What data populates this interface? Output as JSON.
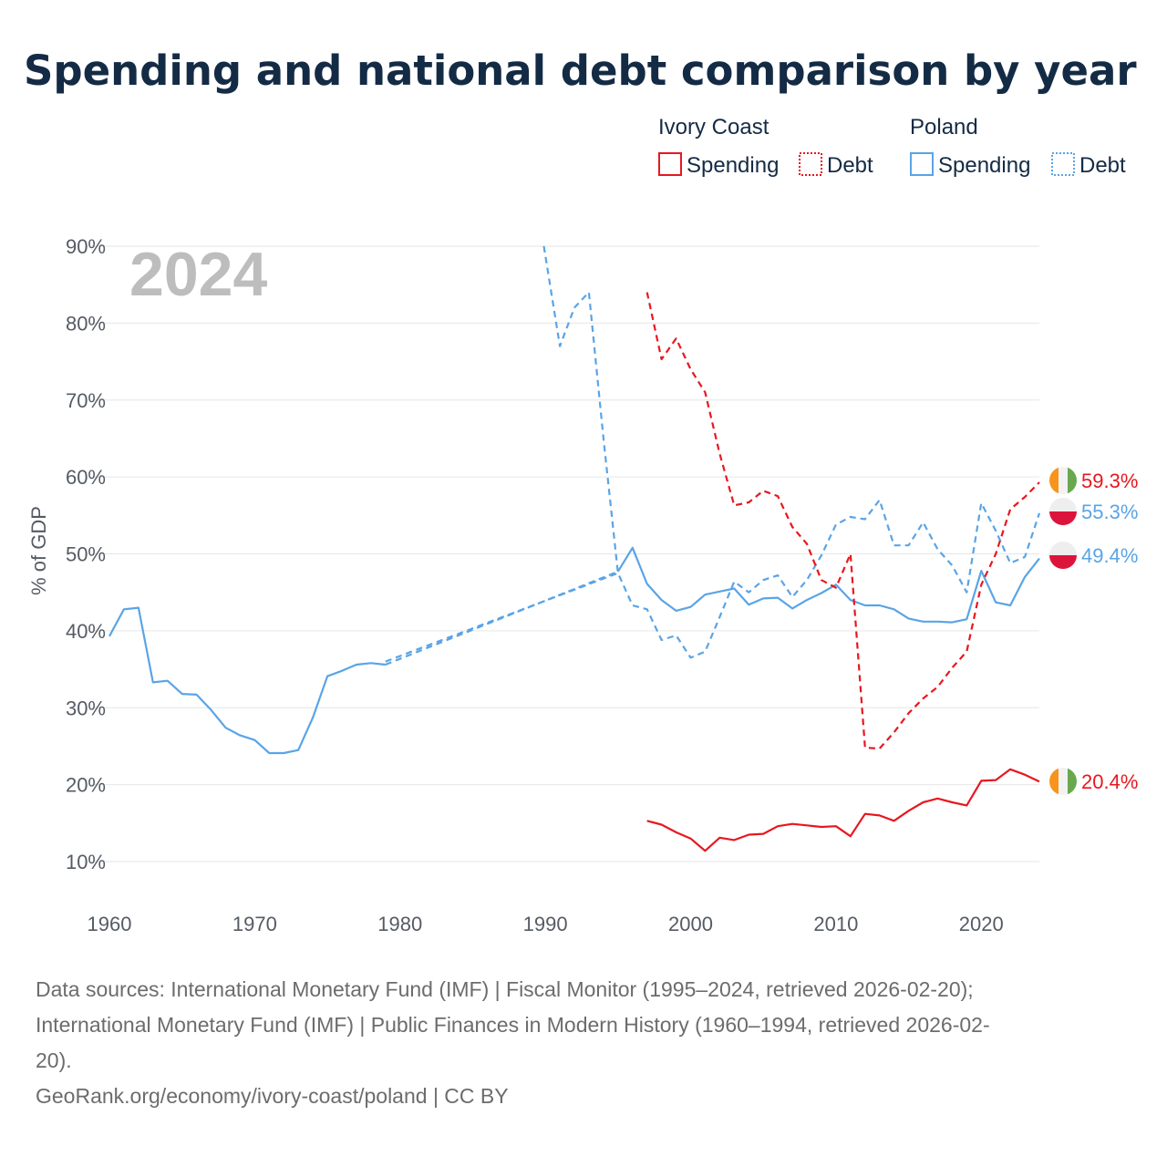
{
  "title": "Spending and national debt comparison by year",
  "year_stamp": "2024",
  "legend": {
    "groups": [
      {
        "title": "Ivory Coast",
        "items": [
          {
            "label": "Spending",
            "style": "solid",
            "color": "#e8171f"
          },
          {
            "label": "Debt",
            "style": "dotted",
            "color": "#e8171f"
          }
        ]
      },
      {
        "title": "Poland",
        "items": [
          {
            "label": "Spending",
            "style": "solid",
            "color": "#5aa4e6"
          },
          {
            "label": "Debt",
            "style": "dotted",
            "color": "#5aa4e6"
          }
        ]
      }
    ]
  },
  "chart_data": {
    "type": "line",
    "ylabel": "% of GDP",
    "xlabel": "",
    "xlim": [
      1960,
      2024
    ],
    "ylim": [
      10,
      90
    ],
    "xticks": [
      1960,
      1970,
      1980,
      1990,
      2000,
      2010,
      2020
    ],
    "yticks": [
      10,
      20,
      30,
      40,
      50,
      60,
      70,
      80,
      90
    ],
    "ytick_labels": [
      "10%",
      "20%",
      "30%",
      "40%",
      "50%",
      "60%",
      "70%",
      "80%",
      "90%"
    ],
    "grid": true,
    "series": [
      {
        "name": "Poland Debt",
        "country": "Poland",
        "measure": "Debt",
        "color": "#5aa4e6",
        "dash": "dashed",
        "x": [
          1979,
          1995,
          1996,
          1997,
          1998,
          1999,
          2000,
          2001,
          2002,
          2003,
          2004,
          2005,
          2006,
          2007,
          2008,
          2009,
          2010,
          2011,
          2012,
          2013,
          2014,
          2015,
          2016,
          2017,
          2018,
          2019,
          2020,
          2021,
          2022,
          2023,
          2024
        ],
        "y": [
          36.0,
          47.5,
          43.3,
          42.8,
          38.8,
          39.4,
          36.5,
          37.3,
          41.8,
          46.4,
          45.0,
          46.6,
          47.2,
          44.4,
          46.6,
          49.8,
          53.8,
          54.8,
          54.5,
          57.0,
          51.1,
          51.1,
          54.1,
          50.6,
          48.5,
          45.0,
          56.6,
          53.0,
          48.8,
          49.6,
          55.3
        ],
        "start_line": {
          "x": [
            1989.9,
            1991,
            1992,
            1993,
            1994,
            1995
          ],
          "y": [
            90.0,
            77.0,
            82.0,
            84.0,
            65.0,
            47.5
          ]
        },
        "end_label": "55.3%",
        "end_flag": "poland"
      },
      {
        "name": "Poland Spending",
        "country": "Poland",
        "measure": "Spending",
        "color": "#5aa4e6",
        "dash": "solid",
        "x": [
          1960,
          1961,
          1962,
          1963,
          1964,
          1965,
          1966,
          1967,
          1968,
          1969,
          1970,
          1971,
          1972,
          1973,
          1974,
          1975,
          1976,
          1977,
          1978,
          1979,
          1995,
          1996,
          1997,
          1998,
          1999,
          2000,
          2001,
          2002,
          2003,
          2004,
          2005,
          2006,
          2007,
          2008,
          2009,
          2010,
          2011,
          2012,
          2013,
          2014,
          2015,
          2016,
          2017,
          2018,
          2019,
          2020,
          2021,
          2022,
          2023,
          2024
        ],
        "y": [
          39.3,
          42.8,
          43.0,
          33.3,
          33.5,
          31.8,
          31.7,
          29.7,
          27.4,
          26.4,
          25.8,
          24.1,
          24.1,
          24.5,
          28.7,
          34.1,
          34.8,
          35.6,
          35.8,
          35.6,
          47.7,
          50.8,
          46.1,
          44.0,
          42.6,
          43.1,
          44.7,
          45.1,
          45.5,
          43.4,
          44.2,
          44.3,
          42.9,
          44.0,
          44.9,
          46.0,
          44.0,
          43.3,
          43.3,
          42.8,
          41.6,
          41.2,
          41.2,
          41.1,
          41.5,
          47.8,
          43.7,
          43.3,
          47.0,
          49.4
        ],
        "gap_bridge": {
          "x": [
            1979,
            1995
          ],
          "dashed": true
        },
        "end_label": "49.4%",
        "end_flag": "poland"
      },
      {
        "name": "Ivory Coast Debt",
        "country": "Ivory Coast",
        "measure": "Debt",
        "color": "#e8171f",
        "dash": "dashed",
        "x": [
          1997,
          1998,
          1999,
          2000,
          2001,
          2002,
          2003,
          2004,
          2005,
          2006,
          2007,
          2008,
          2009,
          2010,
          2011,
          2012,
          2013,
          2014,
          2015,
          2016,
          2017,
          2018,
          2019,
          2020,
          2021,
          2022,
          2023,
          2024
        ],
        "y": [
          84.0,
          75.3,
          78.0,
          74.0,
          71.0,
          63.0,
          56.3,
          56.7,
          58.2,
          57.5,
          53.5,
          51.3,
          46.6,
          45.6,
          50.0,
          24.8,
          24.7,
          26.8,
          29.3,
          31.2,
          32.7,
          35.2,
          37.3,
          46.0,
          50.0,
          55.8,
          57.4,
          59.3
        ],
        "end_label": "59.3%",
        "end_flag": "ivory-coast"
      },
      {
        "name": "Ivory Coast Spending",
        "country": "Ivory Coast",
        "measure": "Spending",
        "color": "#e8171f",
        "dash": "solid",
        "x": [
          1997,
          1998,
          1999,
          2000,
          2001,
          2002,
          2003,
          2004,
          2005,
          2006,
          2007,
          2008,
          2009,
          2010,
          2011,
          2012,
          2013,
          2014,
          2015,
          2016,
          2017,
          2018,
          2019,
          2020,
          2021,
          2022,
          2023,
          2024
        ],
        "y": [
          15.3,
          14.8,
          13.8,
          13.0,
          11.4,
          13.1,
          12.8,
          13.5,
          13.6,
          14.6,
          14.9,
          14.7,
          14.5,
          14.6,
          13.3,
          16.2,
          16.0,
          15.3,
          16.6,
          17.7,
          18.2,
          17.7,
          17.3,
          20.5,
          20.6,
          22.0,
          21.3,
          20.4
        ],
        "end_label": "20.4%",
        "end_flag": "ivory-coast"
      }
    ]
  },
  "footer": {
    "source_lines": [
      "Data sources: International Monetary Fund (IMF) | Fiscal Monitor (1995–2024, retrieved 2026-02-20);",
      "International Monetary Fund (IMF) | Public Finances in Modern History (1960–1994, retrieved 2026-02-",
      "20)."
    ],
    "attribution": "GeoRank.org/economy/ivory-coast/poland | CC BY"
  }
}
